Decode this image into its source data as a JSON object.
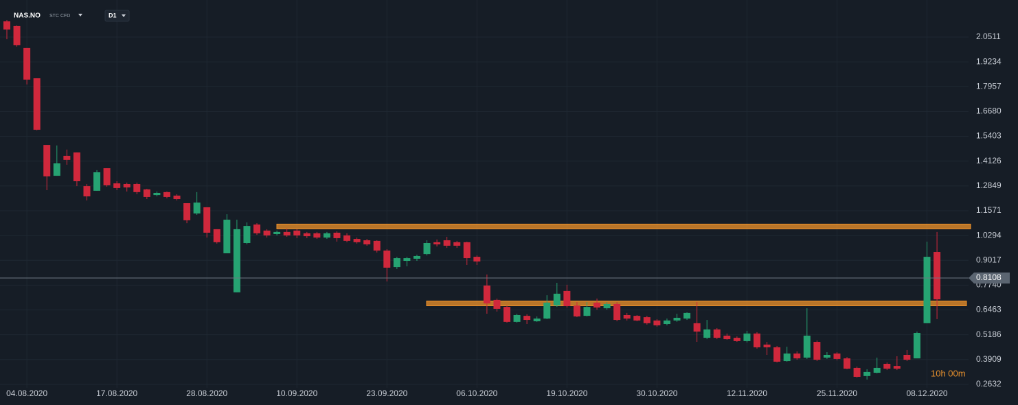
{
  "chart_data": {
    "type": "candlestick",
    "symbol": "NAS.NO",
    "instrument_type": "STC CFD",
    "timeframe": "D1",
    "countdown": "10h 00m",
    "categories": [
      null,
      null,
      "04.08.2020",
      null,
      null,
      null,
      null,
      null,
      null,
      null,
      null,
      "17.08.2020",
      null,
      null,
      null,
      null,
      null,
      null,
      null,
      null,
      "28.08.2020",
      null,
      null,
      null,
      null,
      null,
      null,
      null,
      null,
      "10.09.2020",
      null,
      null,
      null,
      null,
      null,
      null,
      null,
      null,
      "23.09.2020",
      null,
      null,
      null,
      null,
      null,
      null,
      null,
      null,
      "06.10.2020",
      null,
      null,
      null,
      null,
      null,
      null,
      null,
      null,
      "19.10.2020",
      null,
      null,
      null,
      null,
      null,
      null,
      null,
      null,
      "30.10.2020",
      null,
      null,
      null,
      null,
      null,
      null,
      null,
      null,
      "12.11.2020",
      null,
      null,
      null,
      null,
      null,
      null,
      null,
      null,
      "25.11.2020",
      null,
      null,
      null,
      null,
      null,
      null,
      null,
      null,
      "08.12.2020",
      null
    ],
    "open": [
      2.132,
      2.108,
      1.995,
      1.839,
      1.496,
      1.337,
      1.44,
      1.457,
      1.284,
      1.26,
      1.376,
      1.298,
      1.295,
      1.295,
      1.267,
      1.238,
      1.253,
      1.235,
      1.196,
      1.143,
      1.175,
      1.062,
      0.938,
      0.737,
      0.991,
      1.086,
      1.055,
      1.037,
      1.048,
      1.055,
      1.041,
      1.041,
      1.019,
      1.044,
      1.03,
      1.012,
      1.005,
      1.002,
      0.952,
      0.867,
      0.899,
      0.91,
      0.934,
      0.995,
      1.005,
      0.995,
      0.995,
      0.92,
      0.772,
      0.698,
      0.662,
      0.585,
      0.616,
      0.588,
      0.602,
      0.669,
      0.744,
      0.669,
      0.616,
      0.684,
      0.655,
      0.677,
      0.62,
      0.616,
      0.609,
      0.592,
      0.574,
      0.592,
      0.602,
      0.578,
      0.503,
      0.546,
      0.514,
      0.503,
      0.486,
      0.525,
      0.468,
      0.454,
      0.383,
      0.422,
      0.401,
      0.482,
      0.401,
      0.422,
      0.397,
      0.348,
      0.306,
      0.323,
      0.369,
      0.358,
      0.415,
      0.397,
      0.578,
      0.945
    ],
    "high": [
      2.139,
      2.111,
      1.995,
      1.839,
      1.496,
      1.493,
      1.472,
      1.457,
      1.295,
      1.366,
      1.376,
      1.309,
      1.302,
      1.302,
      1.27,
      1.256,
      1.256,
      1.242,
      1.196,
      1.253,
      1.175,
      1.062,
      1.139,
      1.111,
      1.097,
      1.093,
      1.062,
      1.055,
      1.065,
      1.062,
      1.048,
      1.048,
      1.048,
      1.051,
      1.041,
      1.019,
      1.012,
      1.005,
      0.959,
      0.92,
      0.92,
      0.931,
      1.005,
      1.009,
      1.023,
      1.002,
      0.998,
      0.927,
      0.829,
      0.705,
      0.669,
      0.627,
      0.624,
      0.613,
      0.722,
      0.786,
      0.776,
      0.687,
      0.687,
      0.705,
      0.687,
      0.687,
      0.631,
      0.62,
      0.616,
      0.599,
      0.602,
      0.627,
      0.634,
      0.687,
      0.595,
      0.553,
      0.525,
      0.51,
      0.539,
      0.532,
      0.482,
      0.461,
      0.457,
      0.433,
      0.655,
      0.489,
      0.429,
      0.429,
      0.404,
      0.355,
      0.341,
      0.401,
      0.376,
      0.408,
      0.44,
      0.535,
      0.998,
      1.048
    ],
    "low": [
      2.04,
      2.002,
      1.807,
      1.571,
      1.263,
      1.337,
      1.394,
      1.284,
      1.21,
      1.26,
      1.281,
      1.263,
      1.256,
      1.242,
      1.217,
      1.231,
      1.221,
      1.21,
      1.093,
      1.136,
      1.019,
      0.988,
      0.938,
      0.737,
      0.984,
      1.033,
      1.019,
      1.03,
      1.023,
      1.016,
      1.016,
      1.012,
      1.012,
      0.998,
      0.995,
      0.988,
      0.977,
      0.942,
      0.793,
      0.857,
      0.871,
      0.899,
      0.927,
      0.973,
      0.966,
      0.966,
      0.878,
      0.878,
      0.627,
      0.638,
      0.581,
      0.581,
      0.574,
      0.585,
      0.599,
      0.662,
      0.659,
      0.609,
      0.613,
      0.648,
      0.648,
      0.588,
      0.592,
      0.588,
      0.571,
      0.56,
      0.567,
      0.585,
      0.595,
      0.482,
      0.496,
      0.496,
      0.493,
      0.482,
      0.479,
      0.447,
      0.415,
      0.376,
      0.38,
      0.39,
      0.394,
      0.383,
      0.394,
      0.387,
      0.341,
      0.298,
      0.288,
      0.32,
      0.337,
      0.337,
      0.383,
      0.397,
      0.578,
      0.599
    ],
    "close": [
      2.09,
      2.009,
      1.832,
      1.574,
      1.334,
      1.401,
      1.419,
      1.309,
      1.231,
      1.355,
      1.288,
      1.274,
      1.277,
      1.253,
      1.228,
      1.249,
      1.228,
      1.217,
      1.108,
      1.199,
      1.044,
      0.995,
      1.111,
      1.062,
      1.079,
      1.041,
      1.03,
      1.048,
      1.03,
      1.03,
      1.026,
      1.019,
      1.041,
      1.016,
      1.002,
      0.995,
      0.984,
      0.952,
      0.864,
      0.913,
      0.913,
      0.924,
      0.991,
      0.984,
      0.977,
      0.977,
      0.913,
      0.896,
      0.68,
      0.652,
      0.585,
      0.62,
      0.595,
      0.602,
      0.684,
      0.73,
      0.666,
      0.613,
      0.662,
      0.659,
      0.677,
      0.595,
      0.602,
      0.592,
      0.578,
      0.567,
      0.592,
      0.606,
      0.631,
      0.535,
      0.546,
      0.503,
      0.496,
      0.486,
      0.525,
      0.454,
      0.454,
      0.38,
      0.422,
      0.397,
      0.514,
      0.39,
      0.415,
      0.394,
      0.344,
      0.302,
      0.327,
      0.348,
      0.344,
      0.344,
      0.39,
      0.528,
      0.92,
      0.701
    ],
    "up_color": "#26a372",
    "down_color": "#d0283c",
    "levels": [
      1.076,
      0.68
    ],
    "level_color": "#f0932b",
    "last_price": 0.8108,
    "ylim": [
      0.21,
      2.242
    ],
    "yticks": [
      2.0511,
      1.9234,
      1.7957,
      {
        "value": 1.668,
        "label": "1.6680"
      },
      1.5403,
      1.4126,
      1.2849,
      1.1571,
      1.0294,
      0.9017,
      {
        "value": 0.774,
        "label": "0.7740"
      },
      0.6463,
      0.5186,
      0.3909,
      0.2632
    ],
    "grid": true
  }
}
